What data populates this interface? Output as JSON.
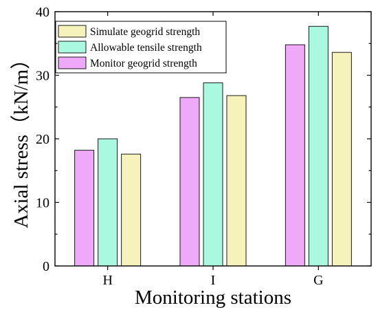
{
  "chart_data": {
    "type": "bar",
    "categories": [
      "H",
      "I",
      "G"
    ],
    "series": [
      {
        "name": "Monitor geogrid strength",
        "values": [
          18.2,
          26.5,
          34.8
        ],
        "color": "#eeaaf8"
      },
      {
        "name": "Allowable tensile strength",
        "values": [
          20.0,
          28.8,
          37.7
        ],
        "color": "#aaf8e0"
      },
      {
        "name": "Simulate geogrid strength",
        "values": [
          17.6,
          26.8,
          33.6
        ],
        "color": "#f6f2bb"
      }
    ],
    "legend_order": [
      2,
      1,
      0
    ],
    "legend_position": "top-left",
    "xlabel": "Monitoring stations",
    "ylabel": "Axial stress（kN/m）",
    "ylim": [
      0,
      40
    ],
    "yticks": [
      0,
      10,
      20,
      30,
      40
    ],
    "grid": false
  }
}
